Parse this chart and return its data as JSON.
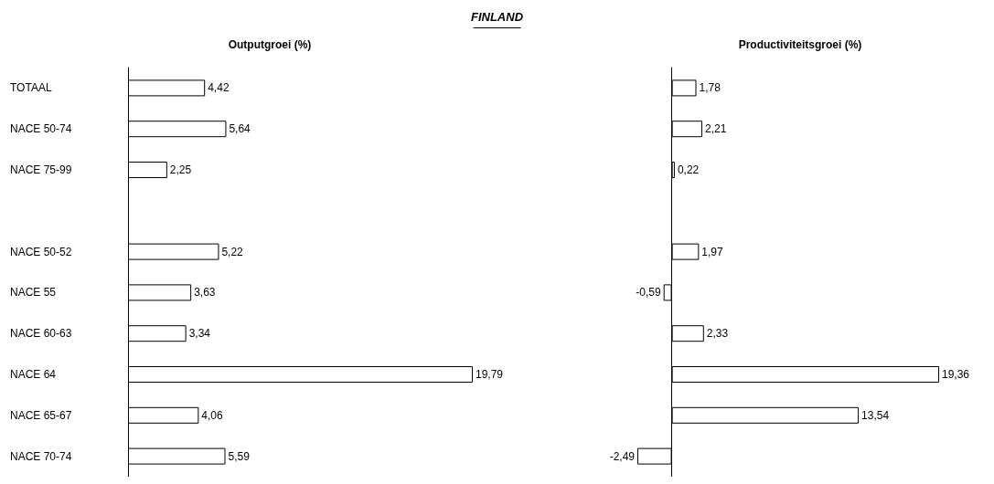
{
  "chart_data": [
    {
      "type": "bar",
      "orientation": "horizontal",
      "title": "Outputgroei (%)",
      "annotations": [
        "FINLAND"
      ],
      "categories": [
        "TOTAAL",
        "NACE 50-74",
        "NACE 75-99",
        null,
        "NACE 50-52",
        "NACE 55",
        "NACE 60-63",
        "NACE 64",
        "NACE 65-67",
        "NACE 70-74"
      ],
      "color": "#ffffff",
      "values": [
        4.42,
        5.64,
        2.25,
        null,
        5.22,
        3.63,
        3.34,
        19.79,
        4.06,
        5.59
      ],
      "value_labels": [
        "4,42",
        "5,64",
        "2,25",
        null,
        "5,22",
        "3,63",
        "3,34",
        "19,79",
        "4,06",
        "5,59"
      ],
      "tick_labels": "y",
      "grid": false
    },
    {
      "type": "bar",
      "orientation": "horizontal",
      "title": "Productiviteitsgroei (%)",
      "categories": [
        null,
        null,
        null,
        null,
        null,
        null,
        null,
        null,
        null,
        null
      ],
      "color": "#ffffff",
      "values": [
        1.78,
        2.21,
        0.22,
        null,
        1.97,
        -0.59,
        2.33,
        19.36,
        13.54,
        -2.49
      ],
      "value_labels": [
        "1,78",
        "2,21",
        "0,22",
        null,
        "1,97",
        "-0,59",
        "2,33",
        "19,36",
        "13,54",
        "-2,49"
      ],
      "tick_labels": false,
      "grid": false
    }
  ]
}
